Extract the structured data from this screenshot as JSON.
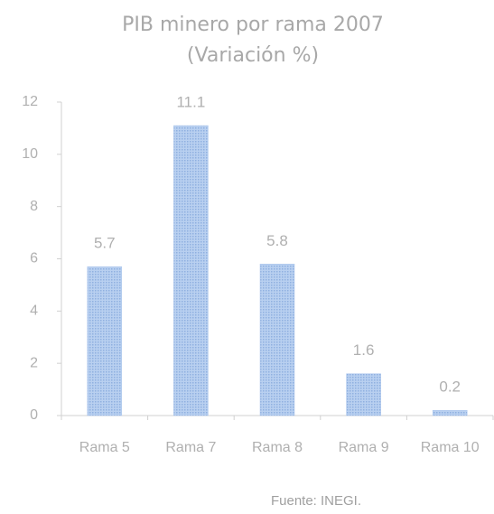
{
  "chart_data": {
    "type": "bar",
    "title": "PIB minero por rama 2007",
    "subtitle": "(Variación %)",
    "categories": [
      "Rama 5",
      "Rama 7",
      "Rama 8",
      "Rama 9",
      "Rama 10"
    ],
    "values": [
      5.7,
      11.1,
      5.8,
      1.6,
      0.2
    ],
    "color": "#a9c4ec",
    "ylim": [
      0,
      12
    ],
    "yticks": [
      0,
      2,
      4,
      6,
      8,
      10,
      12
    ],
    "grid": false,
    "source": "Fuente: INEGI."
  }
}
